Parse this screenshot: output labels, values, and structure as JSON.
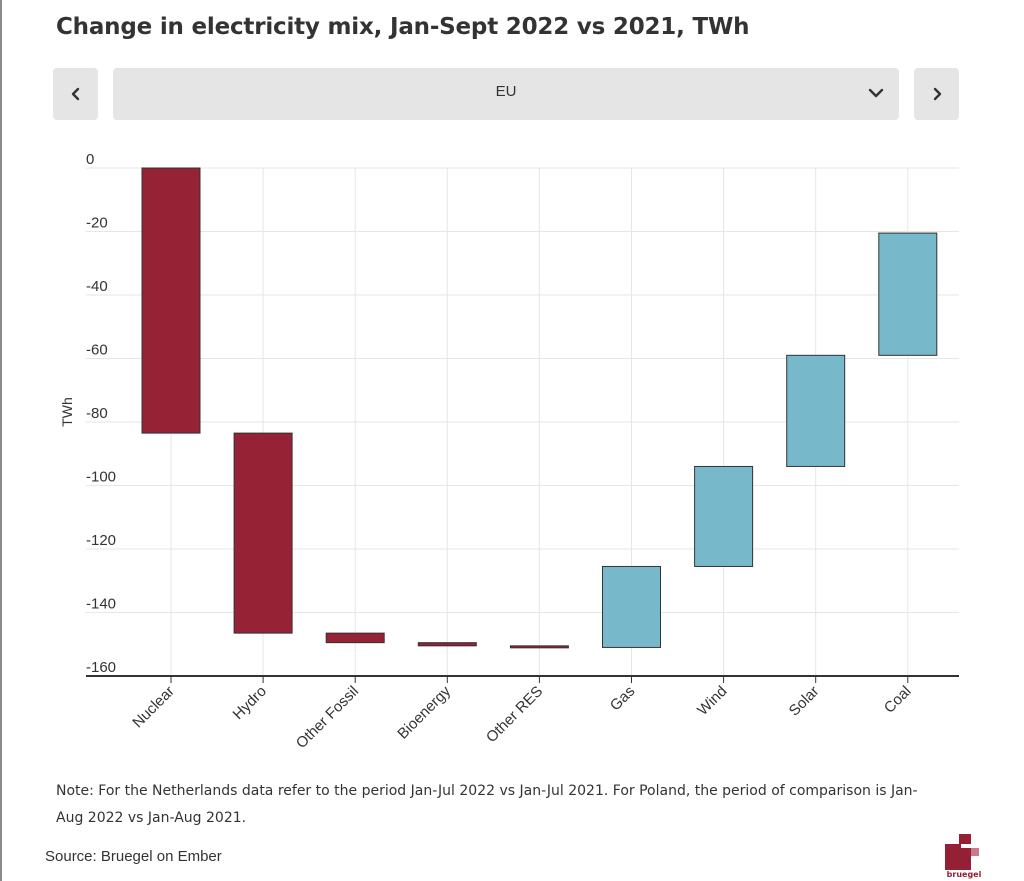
{
  "title": "Change in electricity mix, Jan-Sept 2022 vs 2021, TWh",
  "nav": {
    "prev_icon": "chevron-left-icon",
    "next_icon": "chevron-right-icon",
    "dropdown_icon": "chevron-down-icon",
    "selected_region": "EU"
  },
  "colors": {
    "decrease": "#962236",
    "increase": "#77b9cb",
    "grid": "#e6e6e6",
    "axis": "#333333",
    "background": "#ffffff",
    "control_bg": "#e5e5e5"
  },
  "chart_data": {
    "type": "bar",
    "subtype": "waterfall",
    "title": "Change in electricity mix, Jan-Sept 2022 vs 2021, TWh",
    "ylabel": "TWh",
    "xlabel": "",
    "ylim": [
      -160,
      0
    ],
    "yticks": [
      0,
      -20,
      -40,
      -60,
      -80,
      -100,
      -120,
      -140,
      -160
    ],
    "grid": true,
    "categories": [
      "Nuclear",
      "Hydro",
      "Other Fossil",
      "Bioenergy",
      "Other RES",
      "Gas",
      "Wind",
      "Solar",
      "Coal"
    ],
    "bars": [
      {
        "category": "Nuclear",
        "start": 0,
        "end": -83.5,
        "change": -83.5,
        "direction": "decrease"
      },
      {
        "category": "Hydro",
        "start": -83.5,
        "end": -146.5,
        "change": -63,
        "direction": "decrease"
      },
      {
        "category": "Other Fossil",
        "start": -146.5,
        "end": -149.5,
        "change": -3,
        "direction": "decrease"
      },
      {
        "category": "Bioenergy",
        "start": -149.5,
        "end": -150.5,
        "change": -1,
        "direction": "decrease"
      },
      {
        "category": "Other RES",
        "start": -150.5,
        "end": -151.0,
        "change": -0.5,
        "direction": "decrease"
      },
      {
        "category": "Gas",
        "start": -151.0,
        "end": -125.5,
        "change": 25.5,
        "direction": "increase"
      },
      {
        "category": "Wind",
        "start": -125.5,
        "end": -94.0,
        "change": 31.5,
        "direction": "increase"
      },
      {
        "category": "Solar",
        "start": -94.0,
        "end": -59.0,
        "change": 35,
        "direction": "increase"
      },
      {
        "category": "Coal",
        "start": -59.0,
        "end": -20.5,
        "change": 38.5,
        "direction": "increase"
      }
    ]
  },
  "note": "Note: For the Netherlands data refer to the period Jan-Jul 2022 vs Jan-Jul 2021. For Poland, the period of comparison is Jan-Aug 2022 vs Jan-Aug 2021.",
  "source": "Source: Bruegel on Ember",
  "logo": {
    "text": "bruegel",
    "icon": "bruegel-logo-icon"
  }
}
